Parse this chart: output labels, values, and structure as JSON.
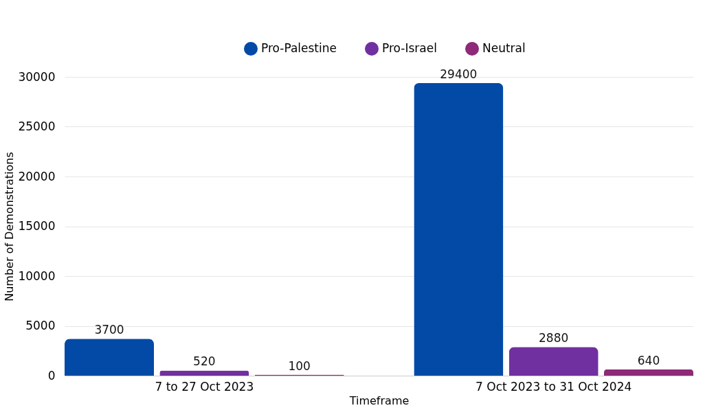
{
  "chart_data": {
    "type": "bar",
    "xlabel": "Timeframe",
    "ylabel": "Number of Demonstrations",
    "categories": [
      "7 to 27 Oct 2023",
      "7 Oct 2023 to 31 Oct 2024"
    ],
    "series": [
      {
        "name": "Pro-Palestine",
        "color": "#034aa6",
        "values": [
          3700,
          29400
        ]
      },
      {
        "name": "Pro-Israel",
        "color": "#7030a0",
        "values": [
          520,
          2880
        ]
      },
      {
        "name": "Neutral",
        "color": "#8e2a78",
        "values": [
          100,
          640
        ]
      }
    ],
    "ylim": [
      0,
      30000
    ],
    "yticks": [
      0,
      5000,
      10000,
      15000,
      20000,
      25000,
      30000
    ],
    "grid": "y",
    "legend": "top",
    "data_labels": true
  }
}
